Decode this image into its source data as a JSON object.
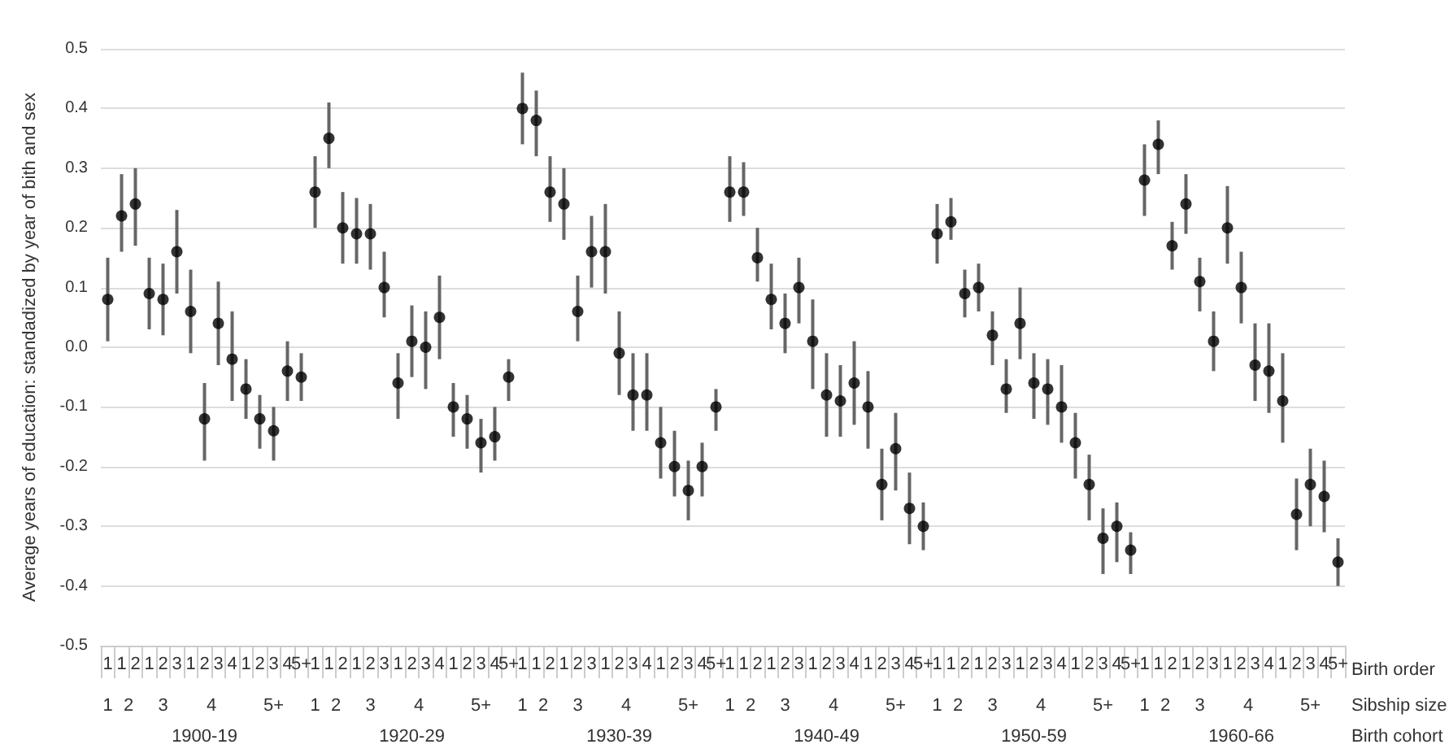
{
  "chart_data": {
    "type": "scatter",
    "ylabel": "Average years of education: standadized by year of bith and sex",
    "categories": [
      "1",
      "1",
      "2",
      "1",
      "2",
      "3",
      "1",
      "2",
      "3",
      "4",
      "1",
      "2",
      "3",
      "4",
      "5+",
      "1",
      "1",
      "2",
      "1",
      "2",
      "3",
      "1",
      "2",
      "3",
      "4",
      "1",
      "2",
      "3",
      "4",
      "5+",
      "1",
      "1",
      "2",
      "1",
      "2",
      "3",
      "1",
      "2",
      "3",
      "4",
      "1",
      "2",
      "3",
      "4",
      "5+",
      "1",
      "1",
      "2",
      "1",
      "2",
      "3",
      "1",
      "2",
      "3",
      "4",
      "1",
      "2",
      "3",
      "4",
      "5+",
      "1",
      "1",
      "2",
      "1",
      "2",
      "3",
      "1",
      "2",
      "3",
      "4",
      "1",
      "2",
      "3",
      "4",
      "5+",
      "1",
      "1",
      "2",
      "1",
      "2",
      "3",
      "1",
      "2",
      "3",
      "4",
      "1",
      "2",
      "3",
      "4",
      "5+"
    ],
    "values": [
      0.08,
      0.22,
      0.24,
      0.09,
      0.08,
      0.16,
      0.06,
      -0.12,
      0.04,
      -0.02,
      -0.07,
      -0.12,
      -0.14,
      -0.04,
      -0.05,
      0.26,
      0.35,
      0.2,
      0.19,
      0.19,
      0.1,
      -0.06,
      0.01,
      0,
      0.05,
      -0.1,
      -0.12,
      -0.16,
      -0.15,
      -0.05,
      0.4,
      0.38,
      0.26,
      0.24,
      0.06,
      0.16,
      0.16,
      -0.01,
      -0.08,
      -0.08,
      -0.16,
      -0.2,
      -0.24,
      -0.2,
      -0.1,
      0.26,
      0.26,
      0.15,
      0.08,
      0.04,
      0.1,
      0.01,
      -0.08,
      -0.09,
      -0.06,
      -0.1,
      -0.23,
      -0.17,
      -0.27,
      -0.3,
      0.19,
      0.21,
      0.09,
      0.1,
      0.02,
      -0.07,
      0.04,
      -0.06,
      -0.07,
      -0.1,
      -0.16,
      -0.23,
      -0.32,
      -0.3,
      -0.34,
      0.28,
      0.34,
      0.17,
      0.24,
      0.11,
      0.01,
      0.2,
      0.1,
      -0.03,
      -0.04,
      -0.09,
      -0.28,
      -0.23,
      -0.25,
      -0.36
    ],
    "errors": [
      [
        0.01,
        0.15
      ],
      [
        0.16,
        0.29
      ],
      [
        0.17,
        0.3
      ],
      [
        0.03,
        0.15
      ],
      [
        0.02,
        0.14
      ],
      [
        0.09,
        0.23
      ],
      [
        -0.01,
        0.13
      ],
      [
        -0.19,
        -0.06
      ],
      [
        -0.03,
        0.11
      ],
      [
        -0.09,
        0.06
      ],
      [
        -0.12,
        -0.02
      ],
      [
        -0.17,
        -0.08
      ],
      [
        -0.19,
        -0.1
      ],
      [
        -0.09,
        0.01
      ],
      [
        -0.09,
        -0.01
      ],
      [
        0.2,
        0.32
      ],
      [
        0.3,
        0.41
      ],
      [
        0.14,
        0.26
      ],
      [
        0.14,
        0.25
      ],
      [
        0.13,
        0.24
      ],
      [
        0.05,
        0.16
      ],
      [
        -0.12,
        -0.01
      ],
      [
        -0.05,
        0.07
      ],
      [
        -0.07,
        0.06
      ],
      [
        -0.02,
        0.12
      ],
      [
        -0.15,
        -0.06
      ],
      [
        -0.17,
        -0.08
      ],
      [
        -0.21,
        -0.12
      ],
      [
        -0.19,
        -0.1
      ],
      [
        -0.09,
        -0.02
      ],
      [
        0.34,
        0.46
      ],
      [
        0.32,
        0.43
      ],
      [
        0.21,
        0.32
      ],
      [
        0.18,
        0.3
      ],
      [
        0.01,
        0.12
      ],
      [
        0.1,
        0.22
      ],
      [
        0.09,
        0.24
      ],
      [
        -0.08,
        0.06
      ],
      [
        -0.14,
        -0.01
      ],
      [
        -0.14,
        -0.01
      ],
      [
        -0.22,
        -0.1
      ],
      [
        -0.25,
        -0.14
      ],
      [
        -0.29,
        -0.19
      ],
      [
        -0.25,
        -0.16
      ],
      [
        -0.14,
        -0.07
      ],
      [
        0.21,
        0.32
      ],
      [
        0.22,
        0.31
      ],
      [
        0.11,
        0.2
      ],
      [
        0.03,
        0.14
      ],
      [
        -0.01,
        0.09
      ],
      [
        0.04,
        0.15
      ],
      [
        -0.07,
        0.08
      ],
      [
        -0.15,
        -0.01
      ],
      [
        -0.15,
        -0.03
      ],
      [
        -0.13,
        0.01
      ],
      [
        -0.17,
        -0.04
      ],
      [
        -0.29,
        -0.17
      ],
      [
        -0.24,
        -0.11
      ],
      [
        -0.33,
        -0.21
      ],
      [
        -0.34,
        -0.26
      ],
      [
        0.14,
        0.24
      ],
      [
        0.18,
        0.25
      ],
      [
        0.05,
        0.13
      ],
      [
        0.06,
        0.14
      ],
      [
        -0.03,
        0.06
      ],
      [
        -0.11,
        -0.02
      ],
      [
        -0.02,
        0.1
      ],
      [
        -0.12,
        -0.01
      ],
      [
        -0.13,
        -0.02
      ],
      [
        -0.16,
        -0.03
      ],
      [
        -0.22,
        -0.11
      ],
      [
        -0.29,
        -0.18
      ],
      [
        -0.38,
        -0.27
      ],
      [
        -0.36,
        -0.26
      ],
      [
        -0.38,
        -0.31
      ],
      [
        0.22,
        0.34
      ],
      [
        0.29,
        0.38
      ],
      [
        0.13,
        0.21
      ],
      [
        0.19,
        0.29
      ],
      [
        0.06,
        0.15
      ],
      [
        -0.04,
        0.06
      ],
      [
        0.14,
        0.27
      ],
      [
        0.04,
        0.16
      ],
      [
        -0.09,
        0.04
      ],
      [
        -0.11,
        0.04
      ],
      [
        -0.16,
        -0.01
      ],
      [
        -0.34,
        -0.22
      ],
      [
        -0.3,
        -0.17
      ],
      [
        -0.31,
        -0.19
      ],
      [
        -0.4,
        -0.32
      ]
    ],
    "color": "#000000",
    "marker": "circle",
    "grid": "y",
    "ylim": [
      -0.5,
      0.5
    ],
    "yticks": [
      -0.5,
      -0.4,
      -0.3,
      -0.2,
      -0.1,
      {
        "value": 0,
        "label": "0.0"
      },
      0.1,
      0.2,
      0.3,
      0.4,
      0.5
    ],
    "annotations": [
      "Birth order",
      "Sibship size",
      "Birth cohort",
      "1",
      "2",
      "3",
      "4",
      "5+",
      "1",
      "2",
      "3",
      "4",
      "5+",
      "1",
      "2",
      "3",
      "4",
      "5+",
      "1",
      "2",
      "3",
      "4",
      "5+",
      "1",
      "2",
      "3",
      "4",
      "5+",
      "1",
      "2",
      "3",
      "4",
      "5+",
      "1900-19",
      "1920-29",
      "1930-39",
      "1940-49",
      "1950-59",
      "1960-66"
    ]
  }
}
